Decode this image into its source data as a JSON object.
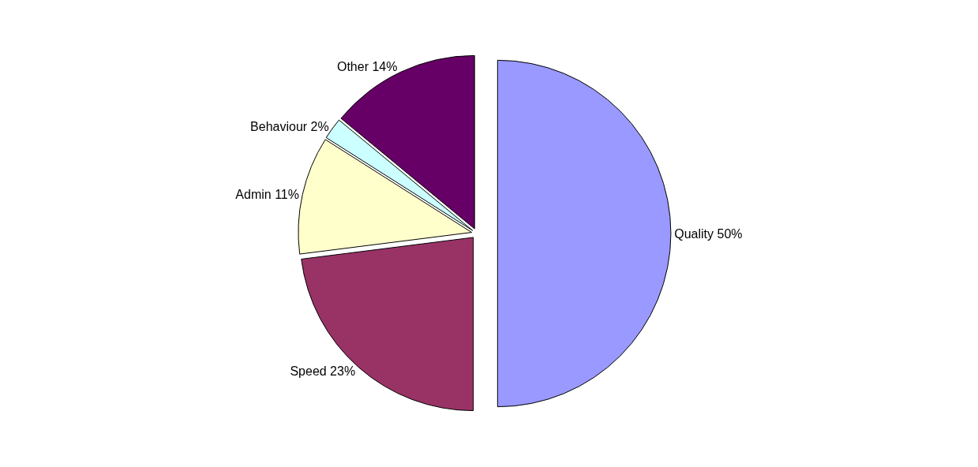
{
  "chart_data": {
    "type": "pie",
    "categories": [
      "Quality",
      "Speed",
      "Admin",
      "Behaviour",
      "Other"
    ],
    "values": [
      50,
      23,
      11,
      2,
      14
    ],
    "value_labels": [
      "50%",
      "23%",
      "11%",
      "2%",
      "14%"
    ],
    "colors": [
      "#9999ff",
      "#993366",
      "#ffffcc",
      "#ccffff",
      "#660066"
    ],
    "legend": false
  }
}
